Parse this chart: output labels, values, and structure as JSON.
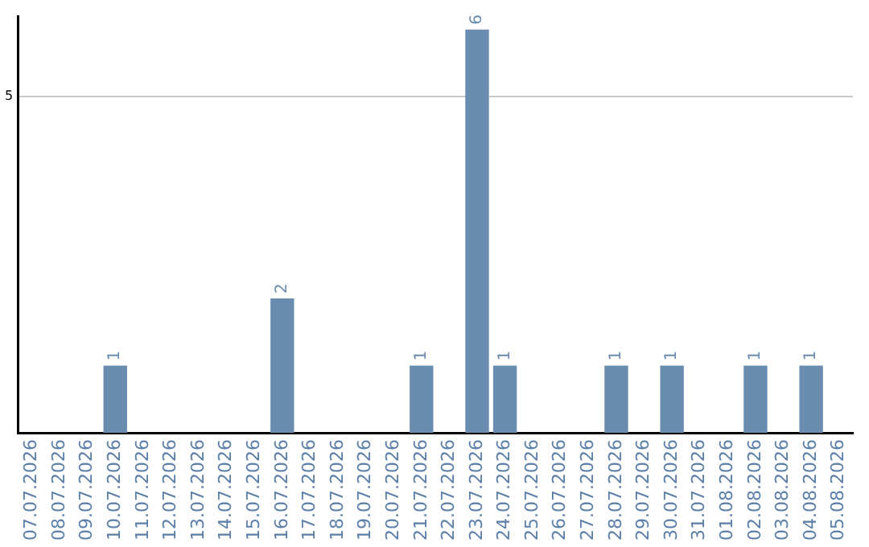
{
  "chart_data": {
    "type": "bar",
    "categories": [
      "07.07.2026",
      "08.07.2026",
      "09.07.2026",
      "10.07.2026",
      "11.07.2026",
      "12.07.2026",
      "13.07.2026",
      "14.07.2026",
      "15.07.2026",
      "16.07.2026",
      "17.07.2026",
      "18.07.2026",
      "19.07.2026",
      "20.07.2026",
      "21.07.2026",
      "22.07.2026",
      "23.07.2026",
      "24.07.2026",
      "25.07.2026",
      "26.07.2026",
      "27.07.2026",
      "28.07.2026",
      "29.07.2026",
      "30.07.2026",
      "31.07.2026",
      "01.08.2026",
      "02.08.2026",
      "03.08.2026",
      "04.08.2026",
      "05.08.2026"
    ],
    "values": [
      0,
      0,
      0,
      1,
      0,
      0,
      0,
      0,
      0,
      2,
      0,
      0,
      0,
      0,
      1,
      0,
      6,
      1,
      0,
      0,
      0,
      1,
      0,
      1,
      0,
      0,
      1,
      0,
      1,
      0
    ],
    "value_labels": [
      null,
      null,
      null,
      "1",
      null,
      null,
      null,
      null,
      null,
      "2",
      null,
      null,
      null,
      null,
      "1",
      null,
      "6",
      "1",
      null,
      null,
      null,
      "1",
      null,
      "1",
      null,
      null,
      "1",
      null,
      "1",
      null
    ],
    "color": "#6a8caf",
    "ylim": [
      0,
      6.2
    ],
    "yticks": [
      5
    ],
    "grid": "y",
    "legend": false
  }
}
